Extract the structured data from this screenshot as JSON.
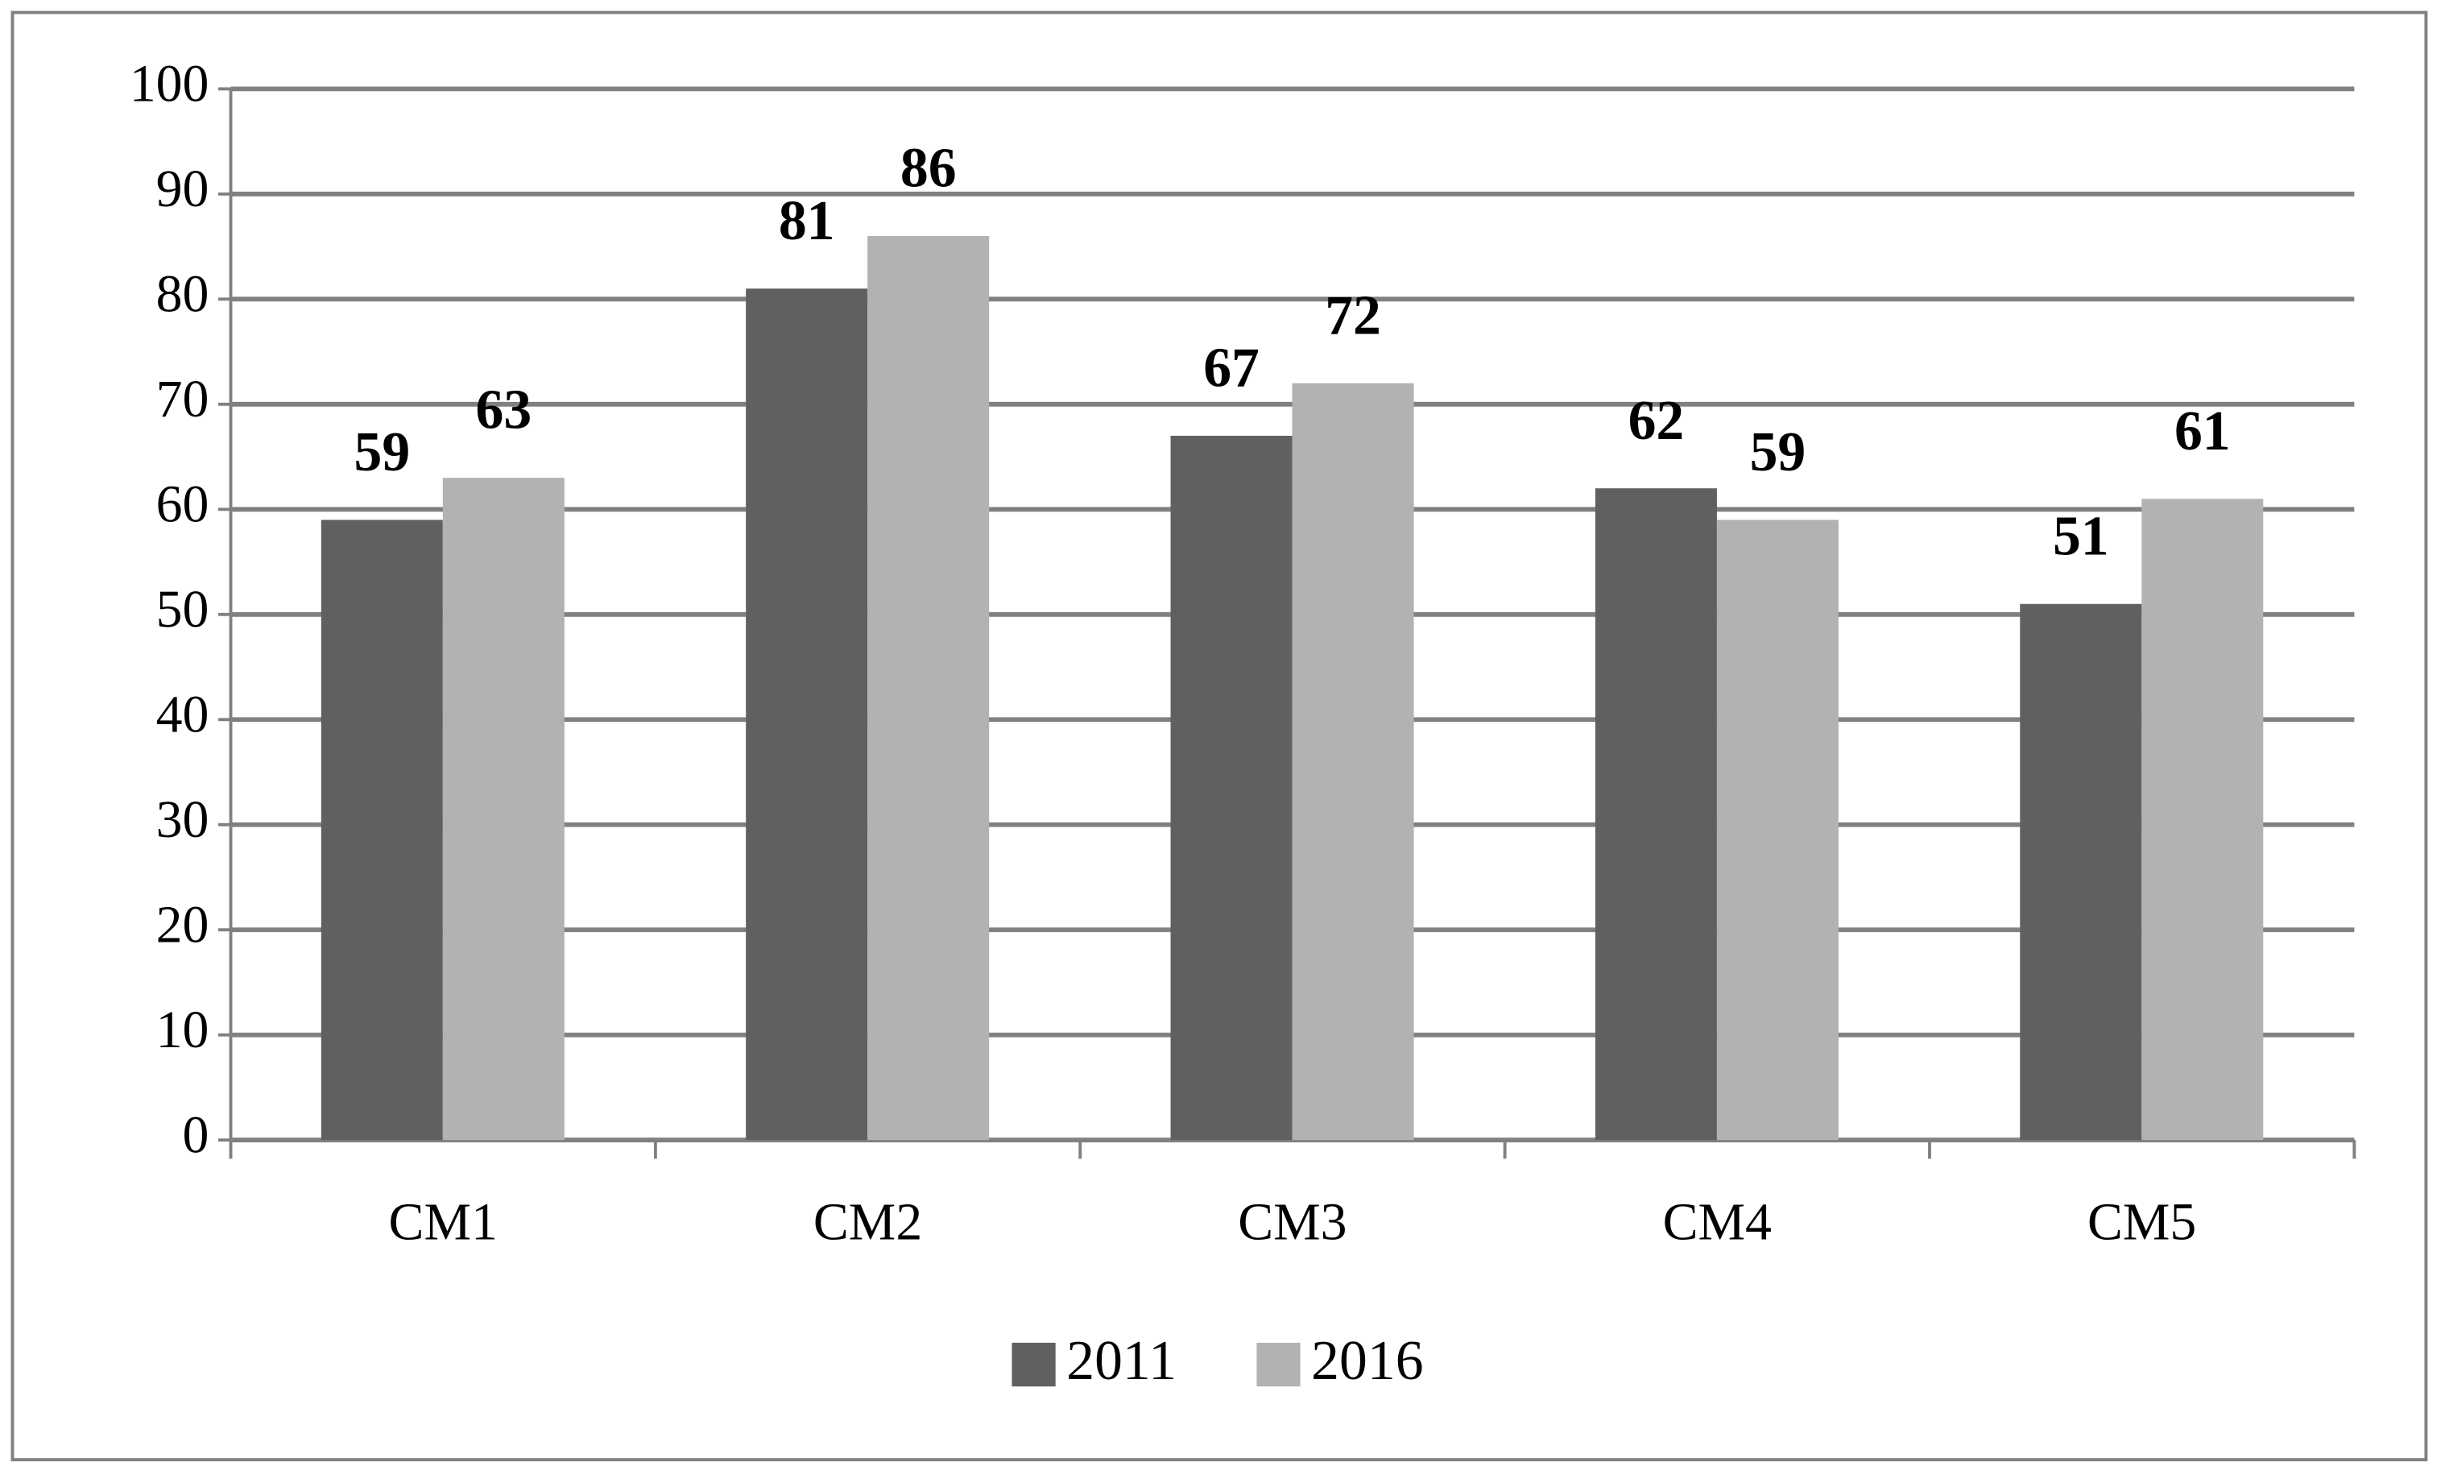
{
  "chart_data": {
    "type": "bar",
    "categories": [
      "CM1",
      "CM2",
      "CM3",
      "CM4",
      "CM5"
    ],
    "series": [
      {
        "name": "2011",
        "color": "#606060",
        "values": [
          59,
          81,
          67,
          62,
          51
        ]
      },
      {
        "name": "2016",
        "color": "#b2b2b2",
        "values": [
          63,
          86,
          72,
          59,
          61
        ]
      }
    ],
    "ylim": [
      0,
      100
    ],
    "yticks": [
      0,
      10,
      20,
      30,
      40,
      50,
      60,
      70,
      80,
      90,
      100
    ],
    "grid": true,
    "legend": "bottom"
  }
}
